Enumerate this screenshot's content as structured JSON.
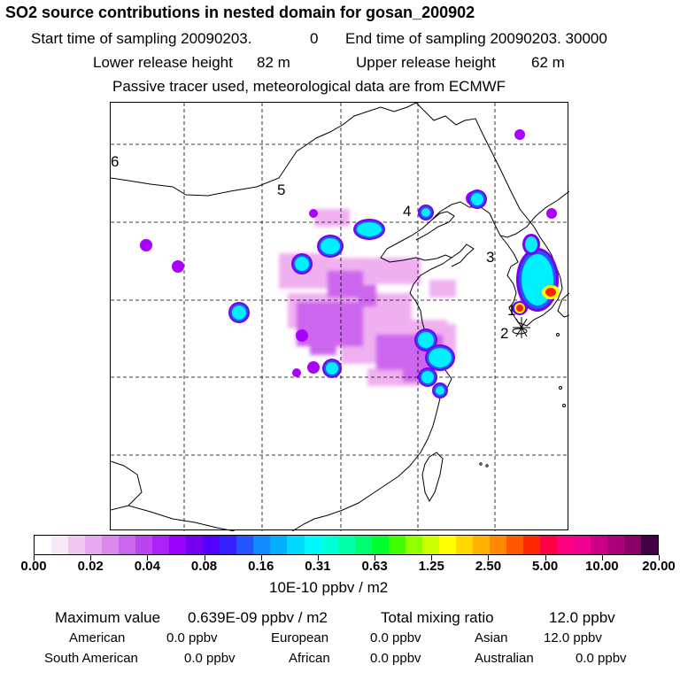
{
  "header": {
    "title": "SO2 source contributions in nested domain for gosan_200902",
    "start_label": "Start time of sampling 20090203.",
    "start_value": "0",
    "end_label": "End time of sampling 20090203. 30000",
    "lower_label": "Lower release height",
    "lower_value": "82 m",
    "upper_label": "Upper release height",
    "upper_value": "62 m",
    "note": "Passive tracer used, meteorological data are from ECMWF"
  },
  "map": {
    "markers": [
      "1",
      "2",
      "3",
      "4",
      "5",
      "6"
    ],
    "receptor_icon": "asterisk-icon",
    "plume_colors": {
      "light": "#f0b0f0",
      "mid": "#cc66ee",
      "purple": "#aa00ff",
      "violet": "#7700ee",
      "blue": "#2255ff",
      "cyan": "#00f0ff",
      "green": "#00ff80",
      "yellow": "#ffff00",
      "red": "#ff2000"
    }
  },
  "colorbar": {
    "colors": [
      "#ffffff",
      "#f8e8f8",
      "#f0c8f0",
      "#e8a8f0",
      "#dd88f0",
      "#cc66ee",
      "#bb44f0",
      "#aa22f8",
      "#9900ff",
      "#7700ee",
      "#5500ff",
      "#3322ff",
      "#2255ff",
      "#1188ff",
      "#00b0ff",
      "#00d8ff",
      "#00f8ff",
      "#00ffd8",
      "#00ffa8",
      "#00ff70",
      "#00ff30",
      "#40ff00",
      "#90ff00",
      "#ccff00",
      "#ffff00",
      "#ffd800",
      "#ffb000",
      "#ff8800",
      "#ff5800",
      "#ff2800",
      "#ff0040",
      "#ff0080",
      "#ee0090",
      "#cc0088",
      "#aa0078",
      "#880068",
      "#440044"
    ],
    "tick_labels": [
      "0.00",
      "0.02",
      "0.04",
      "0.08",
      "0.16",
      "0.31",
      "0.63",
      "1.25",
      "2.50",
      "5.00",
      "10.00",
      "20.00"
    ],
    "unit": "10E-10 ppbv / m2"
  },
  "summary": {
    "max_label": "Maximum value",
    "max_value": "0.639E-09 ppbv / m2",
    "total_label": "Total mixing ratio",
    "total_value": "12.0 ppbv",
    "regions": [
      {
        "name": "American",
        "value": "0.0 ppbv"
      },
      {
        "name": "European",
        "value": "0.0 ppbv"
      },
      {
        "name": "Asian",
        "value": "12.0 ppbv"
      },
      {
        "name": "South American",
        "value": "0.0 ppbv"
      },
      {
        "name": "African",
        "value": "0.0 ppbv"
      },
      {
        "name": "Australian",
        "value": "0.0 ppbv"
      }
    ]
  }
}
